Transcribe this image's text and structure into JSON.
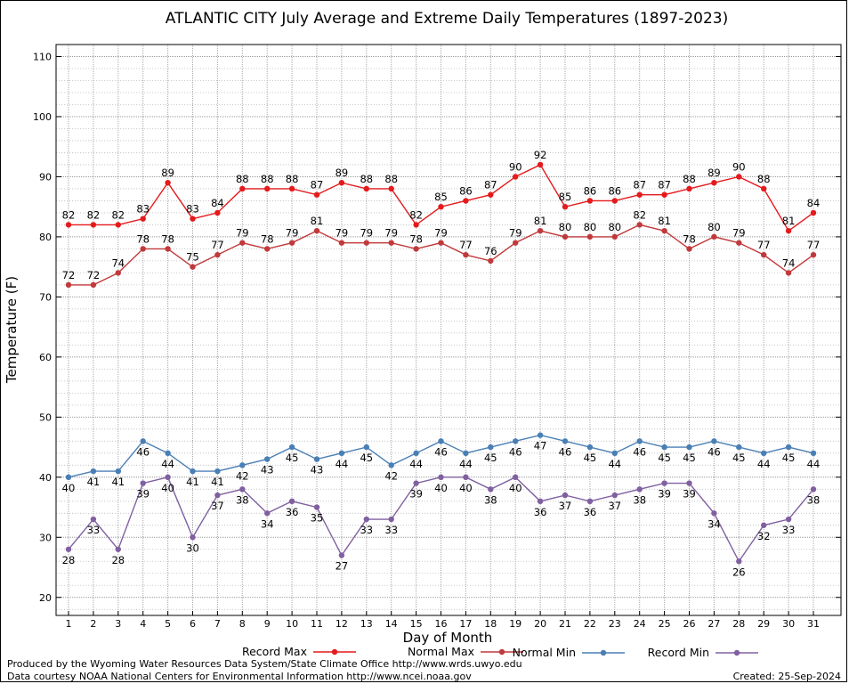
{
  "chart_data": {
    "type": "line",
    "title": "ATLANTIC CITY July Average and Extreme Daily Temperatures (1897-2023)",
    "xlabel": "Day of Month",
    "ylabel": "Temperature (F)",
    "ylim": [
      17,
      112
    ],
    "yticks": [
      20,
      30,
      40,
      50,
      60,
      70,
      80,
      90,
      100,
      110
    ],
    "x": [
      1,
      2,
      3,
      4,
      5,
      6,
      7,
      8,
      9,
      10,
      11,
      12,
      13,
      14,
      15,
      16,
      17,
      18,
      19,
      20,
      21,
      22,
      23,
      24,
      25,
      26,
      27,
      28,
      29,
      30,
      31
    ],
    "grid": true,
    "legend_position": "bottom",
    "series": [
      {
        "name": "Record Max",
        "color": "#e41a1c",
        "values": [
          82,
          82,
          82,
          83,
          89,
          83,
          84,
          88,
          88,
          88,
          87,
          89,
          88,
          88,
          82,
          85,
          86,
          87,
          90,
          92,
          85,
          86,
          86,
          87,
          87,
          88,
          89,
          90,
          88,
          81,
          84
        ],
        "label_position": "above"
      },
      {
        "name": "Normal Max",
        "color": "#c0393b",
        "values": [
          72,
          72,
          74,
          78,
          78,
          75,
          77,
          79,
          78,
          79,
          81,
          79,
          79,
          79,
          78,
          79,
          77,
          76,
          79,
          81,
          80,
          80,
          80,
          82,
          81,
          78,
          80,
          79,
          77,
          74,
          77
        ],
        "label_position": "above"
      },
      {
        "name": "Normal Min",
        "color": "#4a7fb5",
        "values": [
          40,
          41,
          41,
          46,
          44,
          41,
          41,
          42,
          43,
          45,
          43,
          44,
          45,
          42,
          44,
          46,
          44,
          45,
          46,
          47,
          46,
          45,
          44,
          46,
          45,
          45,
          46,
          45,
          44,
          45,
          44
        ],
        "label_position": "below"
      },
      {
        "name": "Record Min",
        "color": "#8060a0",
        "values": [
          28,
          33,
          28,
          39,
          40,
          30,
          37,
          38,
          34,
          36,
          35,
          27,
          33,
          33,
          39,
          40,
          40,
          38,
          40,
          36,
          37,
          36,
          37,
          38,
          39,
          39,
          34,
          26,
          32,
          33,
          38
        ],
        "label_position": "below"
      }
    ]
  },
  "footer": {
    "left_line1": "Produced by the Wyoming Water Resources Data System/State Climate Office http://www.wrds.uwyo.edu",
    "left_line2": "Data courtesy NOAA National Centers for Environmental Information http://www.ncei.noaa.gov",
    "created": "Created: 25-Sep-2024"
  }
}
